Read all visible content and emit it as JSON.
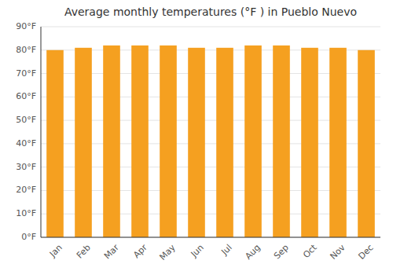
{
  "chart_data": {
    "type": "bar",
    "title": "Average monthly temperatures (°F ) in Pueblo Nuevo",
    "categories": [
      "Jan",
      "Feb",
      "Mar",
      "Apr",
      "May",
      "Jun",
      "Jul",
      "Aug",
      "Sep",
      "Oct",
      "Nov",
      "Dec"
    ],
    "values": [
      80,
      81,
      82,
      82,
      82,
      81,
      81,
      82,
      82,
      81,
      81,
      80
    ],
    "color": "#F5A020",
    "ylim": [
      0,
      90
    ],
    "yticks": [
      {
        "value": 0,
        "label": "0°F"
      },
      {
        "value": 10,
        "label": "10°F"
      },
      {
        "value": 20,
        "label": "20°F"
      },
      {
        "value": 30,
        "label": "30°F"
      },
      {
        "value": 40,
        "label": "40°F"
      },
      {
        "value": 50,
        "label": "50°F"
      },
      {
        "value": 60,
        "label": "60°F"
      },
      {
        "value": 70,
        "label": "70°F"
      },
      {
        "value": 80,
        "label": "80°F"
      },
      {
        "value": 90,
        "label": "90°F"
      }
    ],
    "grid": true
  }
}
